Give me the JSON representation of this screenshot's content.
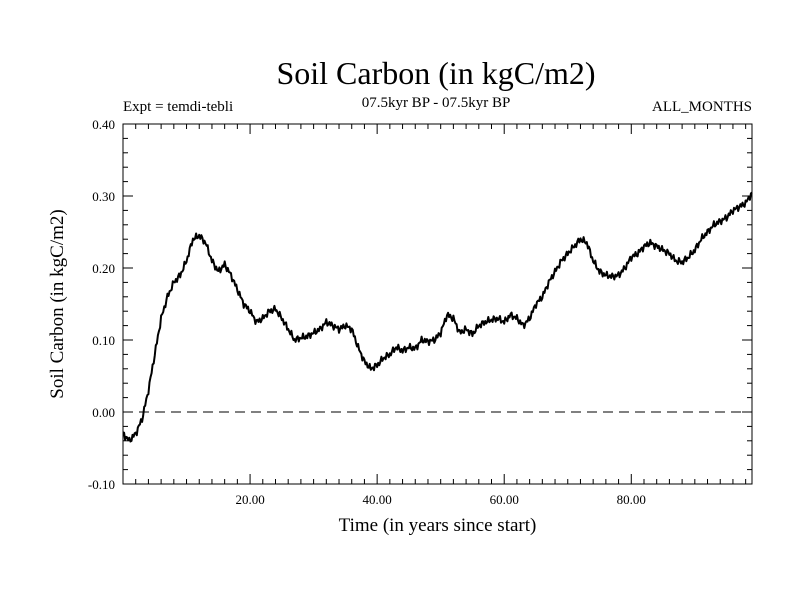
{
  "chart_data": {
    "type": "line",
    "title": "Soil Carbon (in kgC/m2)",
    "subtitle": "07.5kyr BP - 07.5kyr BP",
    "left_note": "Expt = temdi-tebli",
    "right_note": "ALL_MONTHS",
    "xlabel": "Time (in years since start)",
    "ylabel": "Soil Carbon (in kgC/m2)",
    "xlim": [
      0,
      99
    ],
    "ylim": [
      -0.1,
      0.4
    ],
    "xticks": [
      20,
      40,
      60,
      80
    ],
    "xtick_labels": [
      "20.00",
      "40.00",
      "60.00",
      "80.00"
    ],
    "yticks": [
      -0.1,
      0.0,
      0.1,
      0.2,
      0.3,
      0.4
    ],
    "ytick_labels": [
      "-0.10",
      "0.00",
      "0.10",
      "0.20",
      "0.30",
      "0.40"
    ],
    "reference_line": {
      "y": 0.0,
      "style": "dashed"
    },
    "series": [
      {
        "name": "Soil Carbon",
        "color": "#000000",
        "x": [
          0,
          1,
          2,
          3,
          4,
          5,
          6,
          7,
          8,
          9,
          10,
          11,
          12,
          13,
          14,
          15,
          16,
          17,
          18,
          19,
          20,
          21,
          22,
          23,
          24,
          25,
          26,
          27,
          28,
          29,
          30,
          31,
          32,
          33,
          34,
          35,
          36,
          37,
          38,
          39,
          40,
          41,
          42,
          43,
          44,
          45,
          46,
          47,
          48,
          49,
          50,
          51,
          52,
          53,
          54,
          55,
          56,
          57,
          58,
          59,
          60,
          61,
          62,
          63,
          64,
          65,
          66,
          67,
          68,
          69,
          70,
          71,
          72,
          73,
          74,
          75,
          76,
          77,
          78,
          79,
          80,
          81,
          82,
          83,
          84,
          85,
          86,
          87,
          88,
          89,
          90,
          91,
          92,
          93,
          94,
          95,
          96,
          97,
          98,
          99
        ],
        "y": [
          -0.03,
          -0.04,
          -0.03,
          -0.01,
          0.03,
          0.08,
          0.13,
          0.16,
          0.18,
          0.19,
          0.21,
          0.24,
          0.245,
          0.235,
          0.21,
          0.195,
          0.205,
          0.19,
          0.17,
          0.15,
          0.14,
          0.125,
          0.13,
          0.14,
          0.143,
          0.13,
          0.115,
          0.1,
          0.103,
          0.105,
          0.11,
          0.115,
          0.125,
          0.12,
          0.115,
          0.12,
          0.115,
          0.09,
          0.07,
          0.06,
          0.065,
          0.075,
          0.08,
          0.09,
          0.085,
          0.09,
          0.088,
          0.1,
          0.098,
          0.1,
          0.11,
          0.135,
          0.13,
          0.11,
          0.115,
          0.108,
          0.12,
          0.125,
          0.128,
          0.13,
          0.125,
          0.135,
          0.13,
          0.12,
          0.13,
          0.15,
          0.16,
          0.18,
          0.195,
          0.21,
          0.22,
          0.23,
          0.24,
          0.235,
          0.21,
          0.195,
          0.19,
          0.188,
          0.19,
          0.2,
          0.215,
          0.22,
          0.23,
          0.235,
          0.23,
          0.225,
          0.22,
          0.21,
          0.208,
          0.215,
          0.225,
          0.24,
          0.25,
          0.26,
          0.265,
          0.27,
          0.28,
          0.285,
          0.29,
          0.305
        ]
      }
    ]
  }
}
